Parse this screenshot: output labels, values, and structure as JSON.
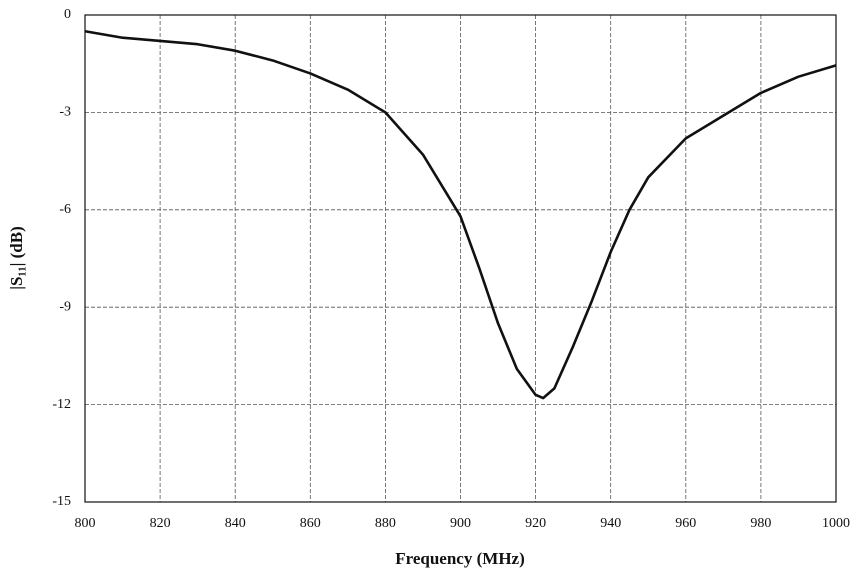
{
  "chart_data": {
    "type": "line",
    "x_label": "Frequency (MHz)",
    "y_label": "|S₁₁| (dB)",
    "x": [
      800,
      810,
      820,
      830,
      840,
      850,
      860,
      870,
      880,
      890,
      900,
      905,
      910,
      915,
      920,
      922,
      925,
      930,
      935,
      940,
      945,
      950,
      960,
      970,
      980,
      990,
      1000
    ],
    "series": [
      {
        "color": "#111111",
        "values": [
          -0.5,
          -0.7,
          -0.8,
          -0.9,
          -1.1,
          -1.4,
          -1.8,
          -2.3,
          -3.0,
          -4.3,
          -6.2,
          -7.8,
          -9.5,
          -10.9,
          -11.7,
          -11.8,
          -11.5,
          -10.2,
          -8.8,
          -7.3,
          -6.0,
          -5.0,
          -3.8,
          -3.1,
          -2.4,
          -1.9,
          -1.55
        ]
      }
    ],
    "xlim": [
      800,
      1000
    ],
    "xticks": [
      800,
      820,
      840,
      860,
      880,
      900,
      920,
      940,
      960,
      980,
      1000
    ],
    "ylim": [
      -15,
      0
    ],
    "yticks": [
      0,
      -3,
      -6,
      -9,
      -12,
      -15
    ],
    "grid": true
  }
}
